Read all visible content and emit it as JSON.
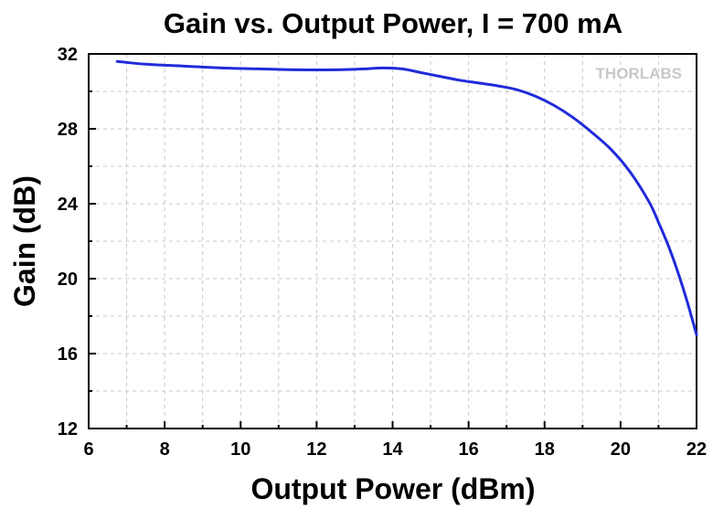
{
  "chart_data": {
    "type": "line",
    "title": "Gain vs. Output Power, I = 700 mA",
    "xlabel": "Output Power (dBm)",
    "ylabel": "Gain (dB)",
    "xlim": [
      6,
      22
    ],
    "ylim": [
      12,
      32
    ],
    "xticks": [
      6,
      8,
      10,
      12,
      14,
      16,
      18,
      20,
      22
    ],
    "yticks": [
      12,
      16,
      20,
      24,
      28,
      32
    ],
    "grid": true,
    "watermark": "THORLABS",
    "line_color": "#1f2bd9",
    "series": [
      {
        "x": [
          6.75,
          7.5,
          8.5,
          9.5,
          10.5,
          11.5,
          12.5,
          13.25,
          13.75,
          14.25,
          14.75,
          15.25,
          15.75,
          16.25,
          16.75,
          17.25,
          17.75,
          18.25,
          18.75,
          19.25,
          19.75,
          20.25,
          20.75,
          21.0,
          21.25,
          21.5,
          21.75,
          22.0
        ],
        "y": [
          31.6,
          31.45,
          31.35,
          31.25,
          31.2,
          31.15,
          31.15,
          31.2,
          31.25,
          31.2,
          31.0,
          30.8,
          30.6,
          30.45,
          30.3,
          30.1,
          29.75,
          29.25,
          28.6,
          27.8,
          26.9,
          25.7,
          24.1,
          23.0,
          21.8,
          20.4,
          18.8,
          17.0
        ]
      }
    ]
  }
}
